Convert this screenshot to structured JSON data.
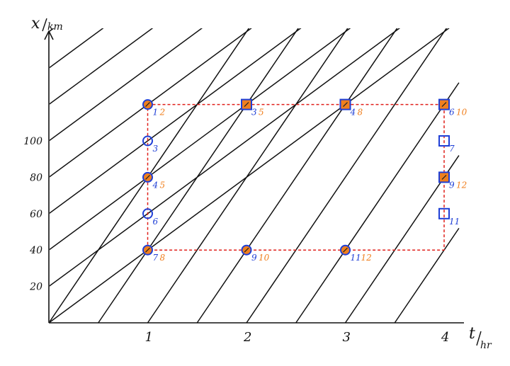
{
  "chart_data": {
    "type": "diagram",
    "axes": {
      "x_label_main": "t",
      "x_label_unit": "hr",
      "y_label_main": "x",
      "y_label_unit": "km",
      "x_ticks": [
        {
          "value": 1,
          "label": "1"
        },
        {
          "value": 2,
          "label": "2"
        },
        {
          "value": 3,
          "label": "3"
        },
        {
          "value": 4,
          "label": "4"
        }
      ],
      "y_ticks": [
        {
          "value": 20,
          "label": "20"
        },
        {
          "value": 40,
          "label": "40"
        },
        {
          "value": 60,
          "label": "60"
        },
        {
          "value": 80,
          "label": "80"
        },
        {
          "value": 100,
          "label": "100"
        }
      ],
      "xlim": [
        0,
        4.15
      ],
      "ylim": [
        0,
        120
      ]
    },
    "lines": {
      "color": "#111111",
      "family_a_speed_kmh": 80,
      "family_a_intercepts_t": [
        0,
        0.5,
        1,
        1.5,
        2,
        2.5,
        3,
        3.5
      ],
      "family_b_speed_kmh": 40,
      "family_b_intercepts_x": [
        0,
        20,
        40,
        60,
        80,
        100,
        120,
        140,
        160
      ]
    },
    "window": {
      "t_min": 1,
      "t_max": 4,
      "x_min": 40,
      "x_max": 120,
      "color": "#e0201b"
    },
    "markers": [
      {
        "t": 1,
        "x": 120,
        "shape": "circle",
        "fill": true,
        "blue": "1",
        "orange": "2"
      },
      {
        "t": 1,
        "x": 100,
        "shape": "circle",
        "fill": false,
        "blue": "3",
        "orange": ""
      },
      {
        "t": 1,
        "x": 80,
        "shape": "circle",
        "fill": true,
        "blue": "4",
        "orange": "5"
      },
      {
        "t": 1,
        "x": 60,
        "shape": "circle",
        "fill": false,
        "blue": "6",
        "orange": ""
      },
      {
        "t": 1,
        "x": 40,
        "shape": "circle",
        "fill": true,
        "blue": "7",
        "orange": "8"
      },
      {
        "t": 2,
        "x": 40,
        "shape": "circle",
        "fill": true,
        "blue": "9",
        "orange": "10"
      },
      {
        "t": 3,
        "x": 40,
        "shape": "circle",
        "fill": true,
        "blue": "11",
        "orange": "12"
      },
      {
        "t": 2,
        "x": 120,
        "shape": "square",
        "fill": true,
        "blue": "3",
        "orange": "5"
      },
      {
        "t": 3,
        "x": 120,
        "shape": "square",
        "fill": true,
        "blue": "4",
        "orange": "8"
      },
      {
        "t": 4,
        "x": 120,
        "shape": "square",
        "fill": true,
        "blue": "6",
        "orange": "10"
      },
      {
        "t": 4,
        "x": 100,
        "shape": "square",
        "fill": false,
        "blue": "7",
        "orange": ""
      },
      {
        "t": 4,
        "x": 80,
        "shape": "square",
        "fill": true,
        "blue": "9",
        "orange": "12"
      },
      {
        "t": 4,
        "x": 60,
        "shape": "square",
        "fill": false,
        "blue": "11",
        "orange": ""
      }
    ],
    "colors": {
      "blue": "#1f3fd6",
      "orange": "#f07f1e",
      "axis": "#111111"
    }
  }
}
